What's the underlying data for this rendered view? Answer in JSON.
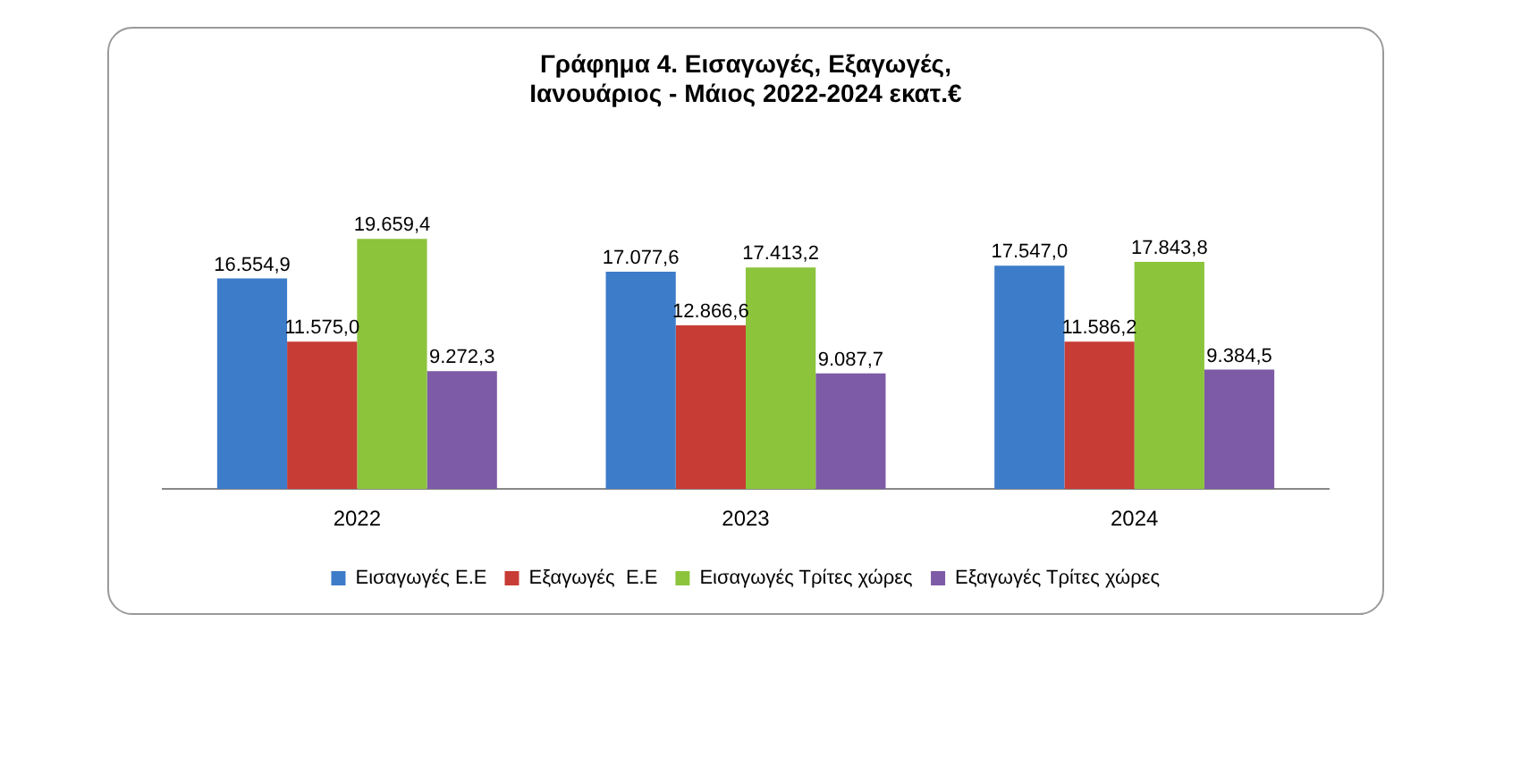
{
  "chart_data": {
    "type": "bar",
    "title": "Γράφημα 4. Εισαγωγές, Εξαγωγές,\nΙανουάριος - Μάιος 2022-2024 εκατ.€",
    "categories": [
      "2022",
      "2023",
      "2024"
    ],
    "series": [
      {
        "name": "Εισαγωγές Ε.Ε",
        "color": "#3d7cc9",
        "values": [
          16554.9,
          17077.6,
          17547.0
        ],
        "value_labels": [
          "16.554,9",
          "17.077,6",
          "17.547,0"
        ]
      },
      {
        "name": "Εξαγωγές  Ε.Ε",
        "color": "#c83c36",
        "values": [
          11575.0,
          12866.6,
          11586.2
        ],
        "value_labels": [
          "11.575,0",
          "12.866,6",
          "11.586,2"
        ]
      },
      {
        "name": "Εισαγωγές Τρίτες χώρες",
        "color": "#8cc43c",
        "values": [
          19659.4,
          17413.2,
          17843.8
        ],
        "value_labels": [
          "19.659,4",
          "17.413,2",
          "17.843,8"
        ]
      },
      {
        "name": "Εξαγωγές Τρίτες χώρες",
        "color": "#7d5ba6",
        "values": [
          9272.3,
          9087.7,
          9384.5
        ],
        "value_labels": [
          "9.272,3",
          "9.087,7",
          "9.384,5"
        ]
      }
    ],
    "legend": "bottom",
    "grid": false
  }
}
